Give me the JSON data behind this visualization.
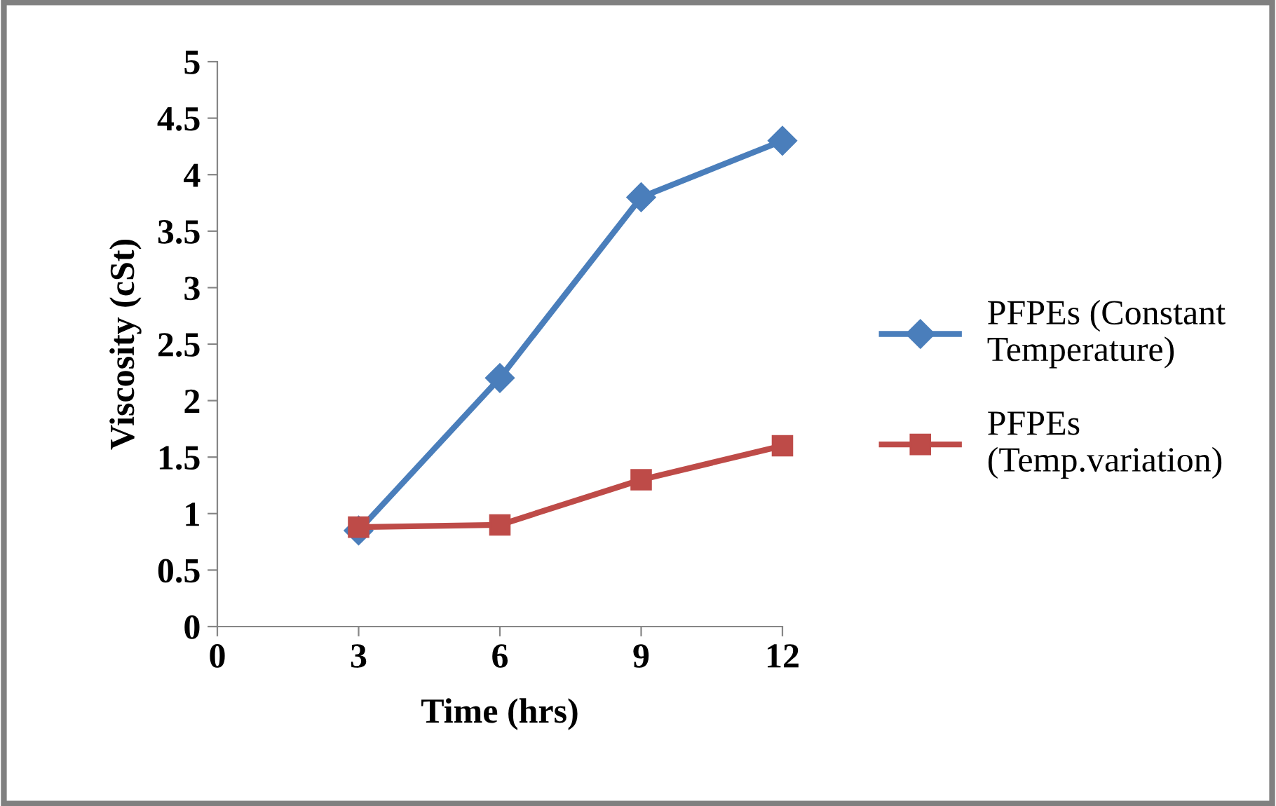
{
  "chart_data": {
    "type": "line",
    "xlabel": "Time (hrs)",
    "ylabel": "Viscosity (cSt)",
    "x": [
      3,
      6,
      9,
      12
    ],
    "series": [
      {
        "name": "PFPEs (Constant\nTemperature)",
        "color": "#4a7ebb",
        "marker": "diamond",
        "values": [
          0.85,
          2.2,
          3.8,
          4.3
        ]
      },
      {
        "name": "PFPEs\n(Temp.variation)",
        "color": "#be4b48",
        "marker": "square",
        "values": [
          0.88,
          0.9,
          1.3,
          1.6
        ]
      }
    ],
    "xlim": [
      0,
      12
    ],
    "xticks": [
      0,
      3,
      6,
      9,
      12
    ],
    "ylim": [
      0,
      5
    ],
    "yticks": [
      0,
      0.5,
      1,
      1.5,
      2,
      2.5,
      3,
      3.5,
      4,
      4.5,
      5
    ],
    "grid": false,
    "legend": "right",
    "line_style": "solid"
  }
}
